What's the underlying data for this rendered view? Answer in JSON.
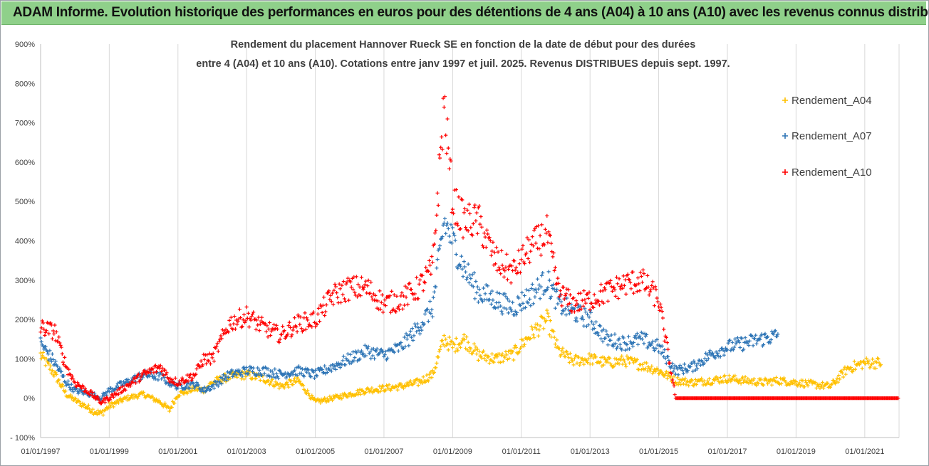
{
  "header": {
    "title": "ADAM Informe. Evolution historique des performances en euros pour des détentions de 4 ans (A04) à 10 ans (A10) avec les revenus connus distribués"
  },
  "chart_data": {
    "type": "scatter",
    "subtitle_line1": "Rendement du placement Hannover Rueck SE en fonction de la date de début pour des durées",
    "subtitle_line2": "entre 4 (A04) et 10 ans (A10). Cotations entre janv 1997 et juil. 2025. Revenus DISTRIBUES depuis sept. 1997.",
    "xlim": [
      "1997-01-01",
      "2022-01-01"
    ],
    "x_ticks": [
      "01/01/1997",
      "01/01/1999",
      "01/01/2001",
      "01/01/2003",
      "01/01/2005",
      "01/01/2007",
      "01/01/2009",
      "01/01/2011",
      "01/01/2013",
      "01/01/2015",
      "01/01/2017",
      "01/01/2019",
      "01/01/2021"
    ],
    "ylim": [
      -100,
      900
    ],
    "y_ticks": [
      "- 100%",
      "0%",
      "100%",
      "200%",
      "300%",
      "400%",
      "500%",
      "600%",
      "700%",
      "800%",
      "900%"
    ],
    "grid": "vertical",
    "legend_position": "right",
    "series": [
      {
        "name": "Rendement_A04",
        "color": "#ffc000",
        "points": [
          [
            "1997-01-01",
            110
          ],
          [
            "1997-06-01",
            60
          ],
          [
            "1997-10-01",
            10
          ],
          [
            "1998-01-01",
            -5
          ],
          [
            "1998-07-01",
            -30
          ],
          [
            "1998-10-01",
            -40
          ],
          [
            "1999-01-01",
            -20
          ],
          [
            "1999-07-01",
            0
          ],
          [
            "2000-01-01",
            10
          ],
          [
            "2000-07-01",
            -10
          ],
          [
            "2000-10-01",
            -30
          ],
          [
            "2001-01-01",
            10
          ],
          [
            "2001-07-01",
            25
          ],
          [
            "2001-10-01",
            20
          ],
          [
            "2002-01-01",
            40
          ],
          [
            "2002-07-01",
            55
          ],
          [
            "2003-01-01",
            60
          ],
          [
            "2003-07-01",
            50
          ],
          [
            "2004-01-01",
            30
          ],
          [
            "2004-07-01",
            45
          ],
          [
            "2005-01-01",
            -10
          ],
          [
            "2005-07-01",
            0
          ],
          [
            "2006-01-01",
            10
          ],
          [
            "2006-07-01",
            20
          ],
          [
            "2007-01-01",
            25
          ],
          [
            "2007-07-01",
            30
          ],
          [
            "2008-01-01",
            40
          ],
          [
            "2008-06-01",
            60
          ],
          [
            "2008-10-01",
            150
          ],
          [
            "2009-01-01",
            130
          ],
          [
            "2009-05-01",
            150
          ],
          [
            "2009-10-01",
            110
          ],
          [
            "2010-04-01",
            100
          ],
          [
            "2010-10-01",
            110
          ],
          [
            "2011-04-01",
            160
          ],
          [
            "2011-10-01",
            200
          ],
          [
            "2012-02-01",
            120
          ],
          [
            "2012-07-01",
            95
          ],
          [
            "2013-01-01",
            100
          ],
          [
            "2013-07-01",
            90
          ],
          [
            "2014-01-01",
            95
          ],
          [
            "2014-07-01",
            85
          ],
          [
            "2015-01-01",
            70
          ],
          [
            "2015-07-01",
            45
          ],
          [
            "2016-01-01",
            40
          ],
          [
            "2016-07-01",
            45
          ],
          [
            "2017-01-01",
            50
          ],
          [
            "2017-07-01",
            45
          ],
          [
            "2018-01-01",
            40
          ],
          [
            "2018-07-01",
            45
          ],
          [
            "2019-01-01",
            40
          ],
          [
            "2019-07-01",
            35
          ],
          [
            "2020-01-01",
            30
          ],
          [
            "2020-07-01",
            75
          ],
          [
            "2021-01-01",
            90
          ],
          [
            "2021-07-01",
            90
          ]
        ]
      },
      {
        "name": "Rendement_A07",
        "color": "#2e75b6",
        "points": [
          [
            "1997-01-01",
            140
          ],
          [
            "1997-06-01",
            90
          ],
          [
            "1997-10-01",
            40
          ],
          [
            "1998-01-01",
            20
          ],
          [
            "1998-07-01",
            10
          ],
          [
            "1998-10-01",
            0
          ],
          [
            "1999-01-01",
            20
          ],
          [
            "1999-07-01",
            40
          ],
          [
            "2000-01-01",
            60
          ],
          [
            "2000-07-01",
            55
          ],
          [
            "2000-10-01",
            40
          ],
          [
            "2001-01-01",
            30
          ],
          [
            "2001-07-01",
            35
          ],
          [
            "2001-10-01",
            20
          ],
          [
            "2002-01-01",
            30
          ],
          [
            "2002-07-01",
            60
          ],
          [
            "2003-01-01",
            70
          ],
          [
            "2003-07-01",
            70
          ],
          [
            "2004-01-01",
            60
          ],
          [
            "2004-07-01",
            70
          ],
          [
            "2005-01-01",
            60
          ],
          [
            "2005-07-01",
            80
          ],
          [
            "2006-01-01",
            100
          ],
          [
            "2006-07-01",
            120
          ],
          [
            "2007-01-01",
            110
          ],
          [
            "2007-07-01",
            130
          ],
          [
            "2008-01-01",
            180
          ],
          [
            "2008-06-01",
            230
          ],
          [
            "2008-10-01",
            450
          ],
          [
            "2009-01-01",
            400
          ],
          [
            "2009-05-01",
            330
          ],
          [
            "2009-10-01",
            270
          ],
          [
            "2010-04-01",
            250
          ],
          [
            "2010-10-01",
            230
          ],
          [
            "2011-04-01",
            260
          ],
          [
            "2011-10-01",
            300
          ],
          [
            "2012-02-01",
            240
          ],
          [
            "2012-07-01",
            220
          ],
          [
            "2013-01-01",
            200
          ],
          [
            "2013-07-01",
            150
          ],
          [
            "2014-01-01",
            140
          ],
          [
            "2014-07-01",
            150
          ],
          [
            "2015-01-01",
            130
          ],
          [
            "2015-07-01",
            70
          ],
          [
            "2016-01-01",
            80
          ],
          [
            "2016-07-01",
            110
          ],
          [
            "2017-01-01",
            130
          ],
          [
            "2017-07-01",
            140
          ],
          [
            "2018-01-01",
            150
          ],
          [
            "2018-07-01",
            160
          ]
        ]
      },
      {
        "name": "Rendement_A10",
        "color": "#ff0000",
        "points": [
          [
            "1997-01-01",
            180
          ],
          [
            "1997-06-01",
            170
          ],
          [
            "1997-10-01",
            80
          ],
          [
            "1998-01-01",
            40
          ],
          [
            "1998-07-01",
            10
          ],
          [
            "1998-10-01",
            -10
          ],
          [
            "1999-01-01",
            0
          ],
          [
            "1999-07-01",
            30
          ],
          [
            "2000-01-01",
            60
          ],
          [
            "2000-07-01",
            80
          ],
          [
            "2000-10-01",
            50
          ],
          [
            "2001-01-01",
            40
          ],
          [
            "2001-07-01",
            60
          ],
          [
            "2001-10-01",
            100
          ],
          [
            "2002-01-01",
            100
          ],
          [
            "2002-07-01",
            190
          ],
          [
            "2003-01-01",
            210
          ],
          [
            "2003-07-01",
            180
          ],
          [
            "2004-01-01",
            160
          ],
          [
            "2004-07-01",
            190
          ],
          [
            "2005-01-01",
            200
          ],
          [
            "2005-07-01",
            260
          ],
          [
            "2006-01-01",
            280
          ],
          [
            "2006-07-01",
            280
          ],
          [
            "2007-01-01",
            240
          ],
          [
            "2007-07-01",
            250
          ],
          [
            "2008-01-01",
            280
          ],
          [
            "2008-06-01",
            330
          ],
          [
            "2008-10-01",
            750
          ],
          [
            "2009-01-01",
            500
          ],
          [
            "2009-05-01",
            450
          ],
          [
            "2009-10-01",
            450
          ],
          [
            "2010-04-01",
            350
          ],
          [
            "2010-10-01",
            320
          ],
          [
            "2011-04-01",
            380
          ],
          [
            "2011-10-01",
            420
          ],
          [
            "2012-02-01",
            270
          ],
          [
            "2012-07-01",
            240
          ],
          [
            "2013-01-01",
            250
          ],
          [
            "2013-07-01",
            270
          ],
          [
            "2014-01-01",
            290
          ],
          [
            "2014-07-01",
            300
          ],
          [
            "2015-01-01",
            250
          ],
          [
            "2015-07-01",
            0
          ],
          [
            "2016-01-01",
            0
          ],
          [
            "2017-01-01",
            0
          ],
          [
            "2018-01-01",
            0
          ],
          [
            "2019-01-01",
            0
          ],
          [
            "2020-01-01",
            0
          ],
          [
            "2021-01-01",
            0
          ],
          [
            "2022-01-01",
            0
          ]
        ]
      }
    ]
  }
}
